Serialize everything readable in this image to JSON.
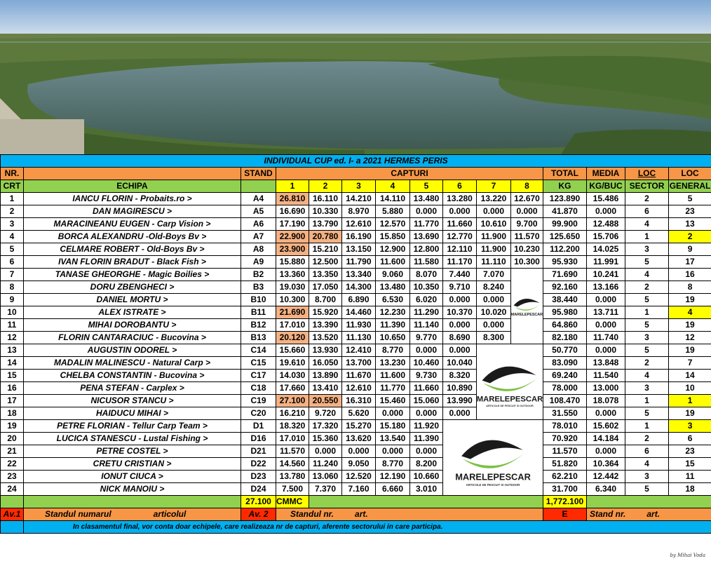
{
  "title": "INDIVIDUAL  CUP ed. I- a  2021 HERMES PERIS",
  "headers": {
    "nr": "NR.",
    "crt": "CRT",
    "echipa": "ECHIPA",
    "stand": "STAND",
    "capturi": "CAPTURI",
    "total": "TOTAL",
    "kg": "KG",
    "media": "MEDIA",
    "kgbuc": "KG/BUC",
    "loc1": "LOC",
    "sector": "SECTOR",
    "loc2": "LOC",
    "general": "GENERAL",
    "catch_numbers": [
      "1",
      "2",
      "3",
      "4",
      "5",
      "6",
      "7",
      "8"
    ]
  },
  "rows": [
    {
      "nr": "1",
      "echipa": "IANCU  FLORIN - Probaits.ro  >",
      "stand": "A4",
      "c": [
        "26.810",
        "16.110",
        "14.210",
        "14.110",
        "13.480",
        "13.280",
        "13.220",
        "12.670"
      ],
      "total": "123.890",
      "media": "15.486",
      "sector": "2",
      "general": "5"
    },
    {
      "nr": "2",
      "echipa": "DAN  MAGIRESCU  >",
      "stand": "A5",
      "c": [
        "16.690",
        "10.330",
        "8.970",
        "5.880",
        "0.000",
        "0.000",
        "0.000",
        "0.000"
      ],
      "total": "41.870",
      "media": "0.000",
      "sector": "6",
      "general": "23"
    },
    {
      "nr": "3",
      "echipa": "MARACINEANU EUGEN - Carp Vision  >",
      "stand": "A6",
      "c": [
        "17.190",
        "13.790",
        "12.610",
        "12.570",
        "11.770",
        "11.660",
        "10.610",
        "9.700"
      ],
      "total": "99.900",
      "media": "12.488",
      "sector": "4",
      "general": "13"
    },
    {
      "nr": "4",
      "echipa": "BORCA  ALEXANDRU  -Old-Boys Bv  >",
      "stand": "A7",
      "c": [
        "22.900",
        "20.780",
        "16.190",
        "15.850",
        "13.690",
        "12.770",
        "11.900",
        "11.570"
      ],
      "total": "125.650",
      "media": "15.706",
      "sector": "1",
      "general": "2"
    },
    {
      "nr": "5",
      "echipa": "CELMARE  ROBERT - Old-Boys Bv  >",
      "stand": "A8",
      "c": [
        "23.900",
        "15.210",
        "13.150",
        "12.900",
        "12.800",
        "12.110",
        "11.900",
        "10.230"
      ],
      "total": "112.200",
      "media": "14.025",
      "sector": "3",
      "general": "9"
    },
    {
      "nr": "6",
      "echipa": "IVAN FLORIN BRADUT - Black Fish  >",
      "stand": "A9",
      "c": [
        "15.880",
        "12.500",
        "11.790",
        "11.600",
        "11.580",
        "11.170",
        "11.110",
        "10.300"
      ],
      "total": "95.930",
      "media": "11.991",
      "sector": "5",
      "general": "17"
    },
    {
      "nr": "7",
      "echipa": "TANASE GHEORGHE - Magic Boilies  >",
      "stand": "B2",
      "c": [
        "13.360",
        "13.350",
        "13.340",
        "9.060",
        "8.070",
        "7.440",
        "7.070",
        ""
      ],
      "total": "71.690",
      "media": "10.241",
      "sector": "4",
      "general": "16"
    },
    {
      "nr": "8",
      "echipa": "DORU  ZBENGHECI  >",
      "stand": "B3",
      "c": [
        "19.030",
        "17.050",
        "14.300",
        "13.480",
        "10.350",
        "9.710",
        "8.240",
        ""
      ],
      "total": "92.160",
      "media": "13.166",
      "sector": "2",
      "general": "8"
    },
    {
      "nr": "9",
      "echipa": "DANIEL  MORTU  >",
      "stand": "B10",
      "c": [
        "10.300",
        "8.700",
        "6.890",
        "6.530",
        "6.020",
        "0.000",
        "0.000",
        ""
      ],
      "total": "38.440",
      "media": "0.000",
      "sector": "5",
      "general": "19"
    },
    {
      "nr": "10",
      "echipa": "ALEX  ISTRATE   >",
      "stand": "B11",
      "c": [
        "21.690",
        "15.920",
        "14.460",
        "12.230",
        "11.290",
        "10.370",
        "10.020",
        ""
      ],
      "total": "95.980",
      "media": "13.711",
      "sector": "1",
      "general": "4"
    },
    {
      "nr": "11",
      "echipa": "MIHAI DOROBANTU  >",
      "stand": "B12",
      "c": [
        "17.010",
        "13.390",
        "11.930",
        "11.390",
        "11.140",
        "0.000",
        "0.000",
        ""
      ],
      "total": "64.860",
      "media": "0.000",
      "sector": "5",
      "general": "19"
    },
    {
      "nr": "12",
      "echipa": "FLORIN  CANTARACIUC - Bucovina  >",
      "stand": "B13",
      "c": [
        "20.120",
        "13.520",
        "11.130",
        "10.650",
        "9.770",
        "8.690",
        "8.300",
        ""
      ],
      "total": "82.180",
      "media": "11.740",
      "sector": "3",
      "general": "12"
    },
    {
      "nr": "13",
      "echipa": "AUGUSTIN  ODOREL  >",
      "stand": "C14",
      "c": [
        "15.660",
        "13.930",
        "12.410",
        "8.770",
        "0.000",
        "0.000",
        "",
        ""
      ],
      "total": "50.770",
      "media": "0.000",
      "sector": "5",
      "general": "19"
    },
    {
      "nr": "14",
      "echipa": "MADALIN  MALINESCU - Natural Carp  >",
      "stand": "C15",
      "c": [
        "19.610",
        "16.050",
        "13.700",
        "13.230",
        "10.460",
        "10.040",
        "",
        ""
      ],
      "total": "83.090",
      "media": "13.848",
      "sector": "2",
      "general": "7"
    },
    {
      "nr": "15",
      "echipa": "CHELBA  CONSTANTIN - Bucovina  >",
      "stand": "C17",
      "c": [
        "14.030",
        "13.890",
        "11.670",
        "11.600",
        "9.730",
        "8.320",
        "",
        ""
      ],
      "total": "69.240",
      "media": "11.540",
      "sector": "4",
      "general": "14"
    },
    {
      "nr": "16",
      "echipa": "PENA  STEFAN - Carplex  >",
      "stand": "C18",
      "c": [
        "17.660",
        "13.410",
        "12.610",
        "11.770",
        "11.660",
        "10.890",
        "",
        ""
      ],
      "total": "78.000",
      "media": "13.000",
      "sector": "3",
      "general": "10"
    },
    {
      "nr": "17",
      "echipa": "NICUSOR  STANCU  >",
      "stand": "C19",
      "c": [
        "27.100",
        "20.550",
        "16.310",
        "15.460",
        "15.060",
        "13.990",
        "",
        ""
      ],
      "total": "108.470",
      "media": "18.078",
      "sector": "1",
      "general": "1"
    },
    {
      "nr": "18",
      "echipa": "HAIDUCU MIHAI  >",
      "stand": "C20",
      "c": [
        "16.210",
        "9.720",
        "5.620",
        "0.000",
        "0.000",
        "0.000",
        "",
        ""
      ],
      "total": "31.550",
      "media": "0.000",
      "sector": "5",
      "general": "19"
    },
    {
      "nr": "19",
      "echipa": "PETRE  FLORIAN - Tellur Carp Team  >",
      "stand": "D1",
      "c": [
        "18.320",
        "17.320",
        "15.270",
        "15.180",
        "11.920",
        "",
        "",
        ""
      ],
      "total": "78.010",
      "media": "15.602",
      "sector": "1",
      "general": "3"
    },
    {
      "nr": "20",
      "echipa": "LUCICA STANESCU - Lustal Fishing  >",
      "stand": "D16",
      "c": [
        "17.010",
        "15.360",
        "13.620",
        "13.540",
        "11.390",
        "",
        "",
        ""
      ],
      "total": "70.920",
      "media": "14.184",
      "sector": "2",
      "general": "6"
    },
    {
      "nr": "21",
      "echipa": "PETRE  COSTEL  >",
      "stand": "D21",
      "c": [
        "11.570",
        "0.000",
        "0.000",
        "0.000",
        "0.000",
        "",
        "",
        ""
      ],
      "total": "11.570",
      "media": "0.000",
      "sector": "6",
      "general": "23"
    },
    {
      "nr": "22",
      "echipa": "CRETU  CRISTIAN  >",
      "stand": "D22",
      "c": [
        "14.560",
        "11.240",
        "9.050",
        "8.770",
        "8.200",
        "",
        "",
        ""
      ],
      "total": "51.820",
      "media": "10.364",
      "sector": "4",
      "general": "15"
    },
    {
      "nr": "23",
      "echipa": "IONUT  CIUCA  >",
      "stand": "D23",
      "c": [
        "13.780",
        "13.060",
        "12.520",
        "12.190",
        "10.660",
        "",
        "",
        ""
      ],
      "total": "62.210",
      "media": "12.442",
      "sector": "3",
      "general": "11"
    },
    {
      "nr": "24",
      "echipa": "NICK  MANOIU  >",
      "stand": "D24",
      "c": [
        "7.500",
        "7.370",
        "7.160",
        "6.660",
        "3.010",
        "",
        "",
        ""
      ],
      "total": "31.700",
      "media": "6.340",
      "sector": "5",
      "general": "18"
    }
  ],
  "summary": {
    "cmmc_value": "27.100",
    "cmmc_label": "CMMC",
    "grand_total": "1,772.100"
  },
  "footer": {
    "av1": "Av.1",
    "standul_numarul": "Standul numarul",
    "articolul": "articolul",
    "av2": "Av. 2",
    "standul_nr": "Standul  nr.",
    "art": "art.",
    "e": "E",
    "stand_nr": "Stand nr.",
    "art2": "art.",
    "note": "In clasamentul final, vor conta doar echipele, care realizeaza nr de capturi, aferente sectorului in care participa."
  },
  "logos": [
    {
      "brand": "MARELEPESCAR"
    },
    {
      "brand": "MARELEPESCAR",
      "tagline": "ARTICOLE DE PESCUIT SI OUTDOOR"
    },
    {
      "brand": "MARELEPESCAR",
      "tagline": "ARTICOLE DE PESCUIT SI OUTDOOR"
    }
  ],
  "signature": "by Mihai Voda",
  "colors": {
    "blue": "#00b0f0",
    "orange": "#f79646",
    "green": "#92d050",
    "yellow": "#ffff00",
    "salmon": "#f4b183",
    "red": "#ff2a00"
  }
}
